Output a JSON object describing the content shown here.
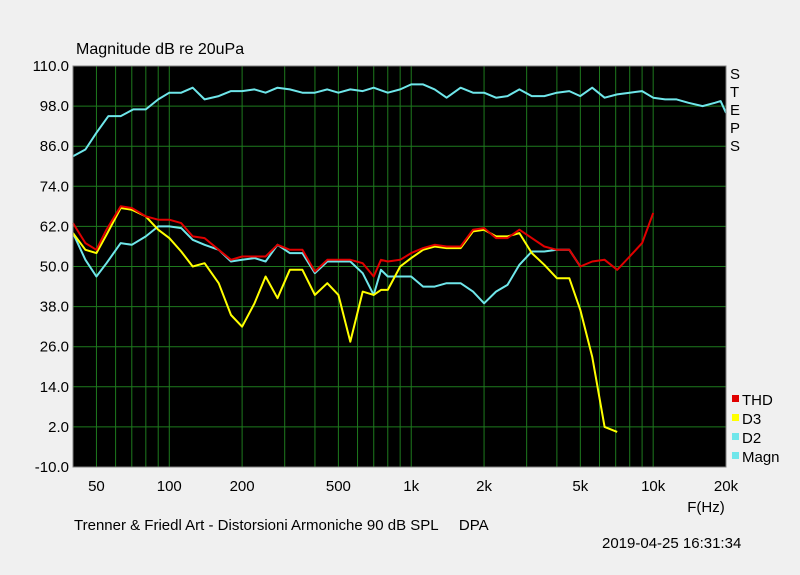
{
  "chart_data": {
    "type": "line",
    "title": "Magnitude dB re 20uPa",
    "xlabel": "F(Hz)",
    "ylabel": "",
    "x_scale": "log",
    "xlim": [
      40,
      20000
    ],
    "ylim": [
      -10,
      110
    ],
    "y_ticks": [
      110,
      98,
      86,
      74,
      62,
      50,
      38,
      26,
      14,
      2,
      -10
    ],
    "y_tick_labels": [
      "110.0",
      "98.0",
      "86.0",
      "74.0",
      "62.0",
      "50.0",
      "38.0",
      "26.0",
      "14.0",
      "2.0",
      "-10.0"
    ],
    "x_ticks": [
      50,
      100,
      200,
      500,
      1000,
      2000,
      5000,
      10000,
      20000
    ],
    "x_tick_labels": [
      "50",
      "100",
      "200",
      "500",
      "1k",
      "2k",
      "5k",
      "10k",
      "20k"
    ],
    "side_label": "STEPS",
    "grid": true,
    "legend_position": "bottom-right",
    "background": "#000000",
    "grid_color": "#1e7a1e",
    "series": [
      {
        "name": "THD",
        "color": "#e00000",
        "points": [
          [
            40,
            63
          ],
          [
            45,
            57
          ],
          [
            50,
            55
          ],
          [
            55,
            61
          ],
          [
            63,
            68
          ],
          [
            70,
            67.5
          ],
          [
            80,
            65
          ],
          [
            90,
            64
          ],
          [
            100,
            64
          ],
          [
            112,
            63
          ],
          [
            125,
            59
          ],
          [
            140,
            58.5
          ],
          [
            160,
            55
          ],
          [
            180,
            52
          ],
          [
            200,
            53
          ],
          [
            225,
            53
          ],
          [
            250,
            53
          ],
          [
            280,
            56.5
          ],
          [
            315,
            55
          ],
          [
            355,
            55
          ],
          [
            400,
            48.5
          ],
          [
            450,
            52
          ],
          [
            500,
            52
          ],
          [
            560,
            52
          ],
          [
            630,
            51
          ],
          [
            700,
            47
          ],
          [
            750,
            52
          ],
          [
            800,
            51.5
          ],
          [
            900,
            52
          ],
          [
            1000,
            54
          ],
          [
            1120,
            55.5
          ],
          [
            1250,
            56.5
          ],
          [
            1400,
            56
          ],
          [
            1600,
            56
          ],
          [
            1800,
            61
          ],
          [
            2000,
            61.5
          ],
          [
            2240,
            58.5
          ],
          [
            2500,
            58.5
          ],
          [
            2800,
            61
          ],
          [
            3150,
            58.5
          ],
          [
            3550,
            56
          ],
          [
            4000,
            55
          ],
          [
            4500,
            55
          ],
          [
            5000,
            50
          ],
          [
            5600,
            51.5
          ],
          [
            6300,
            52
          ],
          [
            7100,
            49
          ],
          [
            8000,
            53
          ],
          [
            9000,
            57
          ],
          [
            10000,
            66
          ]
        ]
      },
      {
        "name": "D3",
        "color": "#ffff00",
        "points": [
          [
            40,
            60
          ],
          [
            45,
            55
          ],
          [
            50,
            54
          ],
          [
            55,
            59.5
          ],
          [
            63,
            67.5
          ],
          [
            70,
            67
          ],
          [
            80,
            65
          ],
          [
            90,
            61
          ],
          [
            100,
            58.5
          ],
          [
            112,
            54.5
          ],
          [
            125,
            50
          ],
          [
            140,
            51
          ],
          [
            160,
            45
          ],
          [
            180,
            35.5
          ],
          [
            200,
            32
          ],
          [
            225,
            39
          ],
          [
            250,
            47
          ],
          [
            280,
            40.5
          ],
          [
            315,
            49
          ],
          [
            355,
            49
          ],
          [
            400,
            41.5
          ],
          [
            450,
            45
          ],
          [
            500,
            41.5
          ],
          [
            560,
            27.5
          ],
          [
            630,
            42.5
          ],
          [
            700,
            41.5
          ],
          [
            750,
            43
          ],
          [
            800,
            43
          ],
          [
            900,
            50
          ],
          [
            1000,
            52.5
          ],
          [
            1120,
            55
          ],
          [
            1250,
            56
          ],
          [
            1400,
            55.5
          ],
          [
            1600,
            55.5
          ],
          [
            1800,
            60.5
          ],
          [
            2000,
            61
          ],
          [
            2240,
            59
          ],
          [
            2500,
            59
          ],
          [
            2800,
            60
          ],
          [
            3150,
            54
          ],
          [
            3550,
            50.5
          ],
          [
            4000,
            46.5
          ],
          [
            4500,
            46.5
          ],
          [
            5000,
            37
          ],
          [
            5600,
            23
          ],
          [
            6300,
            2
          ],
          [
            7100,
            0.5
          ]
        ]
      },
      {
        "name": "D2",
        "color": "#6fe6ea",
        "points": [
          [
            40,
            60
          ],
          [
            45,
            52
          ],
          [
            50,
            47
          ],
          [
            55,
            51
          ],
          [
            63,
            57
          ],
          [
            70,
            56.5
          ],
          [
            80,
            59
          ],
          [
            90,
            62
          ],
          [
            100,
            62
          ],
          [
            112,
            61.5
          ],
          [
            125,
            58
          ],
          [
            140,
            56.5
          ],
          [
            160,
            55
          ],
          [
            180,
            51.5
          ],
          [
            200,
            52
          ],
          [
            225,
            52.5
          ],
          [
            250,
            51.5
          ],
          [
            280,
            56.5
          ],
          [
            315,
            54
          ],
          [
            355,
            54
          ],
          [
            400,
            48
          ],
          [
            450,
            51.5
          ],
          [
            500,
            51.5
          ],
          [
            560,
            51.5
          ],
          [
            630,
            48
          ],
          [
            700,
            41.5
          ],
          [
            750,
            49
          ],
          [
            800,
            47
          ],
          [
            900,
            47
          ],
          [
            1000,
            47
          ],
          [
            1120,
            44
          ],
          [
            1250,
            44
          ],
          [
            1400,
            45
          ],
          [
            1600,
            45
          ],
          [
            1800,
            42.5
          ],
          [
            2000,
            39
          ],
          [
            2240,
            42.5
          ],
          [
            2500,
            44.5
          ],
          [
            2800,
            50.5
          ],
          [
            3150,
            54.5
          ],
          [
            3550,
            54.5
          ],
          [
            4000,
            55
          ],
          [
            4500,
            55
          ],
          [
            5000,
            50
          ]
        ]
      },
      {
        "name": "Magn",
        "color": "#6fe6ea",
        "points": [
          [
            40,
            83
          ],
          [
            45,
            85
          ],
          [
            50,
            90
          ],
          [
            56,
            95
          ],
          [
            63,
            95
          ],
          [
            71,
            97
          ],
          [
            80,
            97
          ],
          [
            90,
            100
          ],
          [
            100,
            102
          ],
          [
            112,
            102
          ],
          [
            125,
            103.5
          ],
          [
            140,
            100
          ],
          [
            160,
            101
          ],
          [
            180,
            102.5
          ],
          [
            200,
            102.5
          ],
          [
            225,
            103
          ],
          [
            250,
            102
          ],
          [
            280,
            103.5
          ],
          [
            315,
            103
          ],
          [
            355,
            102
          ],
          [
            400,
            102
          ],
          [
            450,
            103
          ],
          [
            500,
            102
          ],
          [
            560,
            103
          ],
          [
            630,
            102.5
          ],
          [
            700,
            103.5
          ],
          [
            800,
            102
          ],
          [
            900,
            103
          ],
          [
            1000,
            104.5
          ],
          [
            1120,
            104.5
          ],
          [
            1250,
            103
          ],
          [
            1400,
            100.5
          ],
          [
            1600,
            103.5
          ],
          [
            1800,
            102
          ],
          [
            2000,
            102
          ],
          [
            2240,
            100.5
          ],
          [
            2500,
            101
          ],
          [
            2800,
            103
          ],
          [
            3150,
            101
          ],
          [
            3550,
            101
          ],
          [
            4000,
            102
          ],
          [
            4500,
            102.5
          ],
          [
            5000,
            101
          ],
          [
            5600,
            103.5
          ],
          [
            6300,
            100.5
          ],
          [
            7100,
            101.5
          ],
          [
            8000,
            102
          ],
          [
            9000,
            102.5
          ],
          [
            10000,
            100.5
          ],
          [
            11200,
            100
          ],
          [
            12500,
            100
          ],
          [
            14000,
            99
          ],
          [
            16000,
            98
          ],
          [
            18000,
            99
          ],
          [
            19000,
            99.5
          ],
          [
            20000,
            96
          ]
        ]
      }
    ]
  },
  "footer_text": "Trenner & Friedl Art - Distorsioni Armoniche 90 dB SPL     DPA",
  "timestamp": "2019-04-25 16:31:34"
}
